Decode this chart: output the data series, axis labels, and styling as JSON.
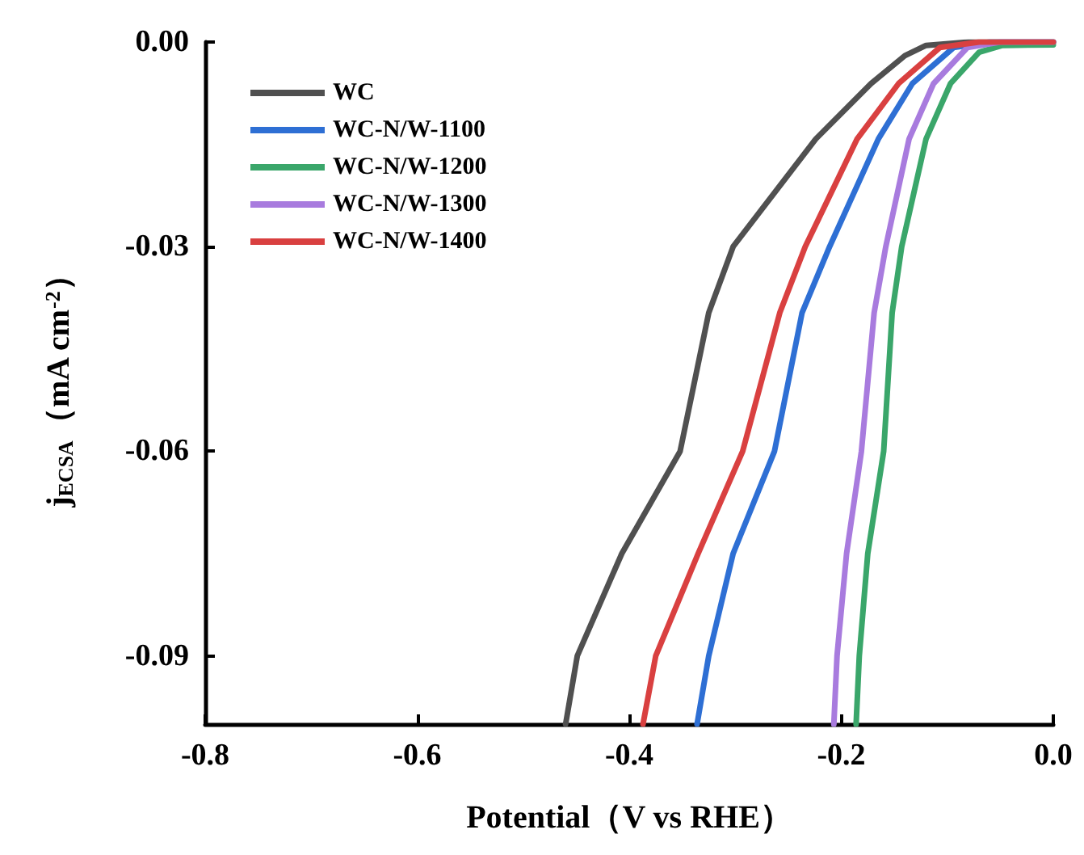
{
  "chart_data": {
    "type": "line",
    "xlabel": "Potential（V vs RHE）",
    "ylabel": "j$_{ECSA}$（mA cm$^{-2}$）",
    "xlim": [
      -0.8,
      0
    ],
    "xticks": [
      -0.8,
      -0.6,
      -0.4,
      -0.2,
      {
        "value": 0,
        "label": "0.0"
      }
    ],
    "ylim": [
      -0.1,
      0
    ],
    "yticks": [
      {
        "value": -0.09,
        "label": "-0.09"
      },
      {
        "value": -0.06,
        "label": "-0.06"
      },
      {
        "value": -0.03,
        "label": "-0.03"
      },
      {
        "value": 0,
        "label": "0.00"
      }
    ],
    "grid": false,
    "legend": "top left",
    "marker": "none",
    "line_style": "solid",
    "series": [
      {
        "name": "WC",
        "color": "#505050",
        "x": [
          -0.46,
          -0.449,
          -0.407,
          -0.352,
          -0.325,
          -0.302,
          -0.224,
          -0.172,
          -0.14,
          -0.12,
          -0.08,
          0
        ],
        "values": [
          -0.1,
          -0.09,
          -0.075,
          -0.06,
          -0.0397,
          -0.03,
          -0.0142,
          -0.0061,
          -0.002,
          -0.0005,
          0,
          0
        ]
      },
      {
        "name": "WC-N/W-1100",
        "color": "#2e6fd4",
        "x": [
          -0.336,
          -0.325,
          -0.302,
          -0.263,
          -0.237,
          -0.211,
          -0.165,
          -0.133,
          -0.094,
          -0.06,
          0
        ],
        "values": [
          -0.1,
          -0.09,
          -0.075,
          -0.06,
          -0.0397,
          -0.03,
          -0.0142,
          -0.0061,
          -0.0008,
          0,
          0
        ]
      },
      {
        "name": "WC-N/W-1200",
        "color": "#3aa66a",
        "x": [
          -0.186,
          -0.183,
          -0.175,
          -0.16,
          -0.152,
          -0.143,
          -0.12,
          -0.097,
          -0.07,
          -0.048,
          0
        ],
        "values": [
          -0.1,
          -0.09,
          -0.075,
          -0.06,
          -0.0397,
          -0.03,
          -0.0142,
          -0.0061,
          -0.0015,
          -0.0005,
          -0.0004
        ]
      },
      {
        "name": "WC-N/W-1300",
        "color": "#a87bde",
        "x": [
          -0.207,
          -0.204,
          -0.195,
          -0.181,
          -0.169,
          -0.158,
          -0.136,
          -0.113,
          -0.081,
          -0.05,
          0
        ],
        "values": [
          -0.1,
          -0.09,
          -0.075,
          -0.06,
          -0.0397,
          -0.03,
          -0.0142,
          -0.0061,
          -0.0008,
          0,
          0
        ]
      },
      {
        "name": "WC-N/W-1400",
        "color": "#d94040",
        "x": [
          -0.387,
          -0.375,
          -0.335,
          -0.293,
          -0.258,
          -0.234,
          -0.185,
          -0.146,
          -0.107,
          -0.07,
          0
        ],
        "values": [
          -0.1,
          -0.09,
          -0.075,
          -0.06,
          -0.0397,
          -0.03,
          -0.0142,
          -0.0061,
          -0.0008,
          0,
          0
        ]
      }
    ]
  }
}
